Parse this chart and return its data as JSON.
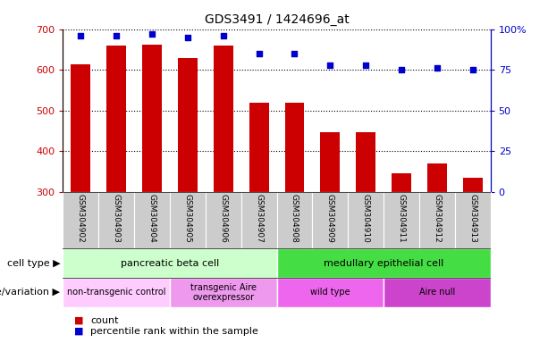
{
  "title": "GDS3491 / 1424696_at",
  "samples": [
    "GSM304902",
    "GSM304903",
    "GSM304904",
    "GSM304905",
    "GSM304906",
    "GSM304907",
    "GSM304908",
    "GSM304909",
    "GSM304910",
    "GSM304911",
    "GSM304912",
    "GSM304913"
  ],
  "counts": [
    614,
    660,
    663,
    630,
    660,
    520,
    520,
    446,
    447,
    346,
    370,
    335
  ],
  "percentile": [
    96,
    96,
    97,
    95,
    96,
    85,
    85,
    78,
    78,
    75,
    76,
    75
  ],
  "ylim_left": [
    300,
    700
  ],
  "ylim_right": [
    0,
    100
  ],
  "yticks_left": [
    300,
    400,
    500,
    600,
    700
  ],
  "yticks_right": [
    0,
    25,
    50,
    75,
    100
  ],
  "bar_color": "#cc0000",
  "dot_color": "#0000cc",
  "cell_type_groups": [
    {
      "label": "pancreatic beta cell",
      "start": 0,
      "end": 5,
      "color": "#ccffcc"
    },
    {
      "label": "medullary epithelial cell",
      "start": 6,
      "end": 11,
      "color": "#44dd44"
    }
  ],
  "genotype_groups": [
    {
      "label": "non-transgenic control",
      "start": 0,
      "end": 2,
      "color": "#ffccff"
    },
    {
      "label": "transgenic Aire\noverexpressor",
      "start": 3,
      "end": 5,
      "color": "#ee99ee"
    },
    {
      "label": "wild type",
      "start": 6,
      "end": 8,
      "color": "#ee66ee"
    },
    {
      "label": "Aire null",
      "start": 9,
      "end": 11,
      "color": "#cc44cc"
    }
  ],
  "legend_count_label": "count",
  "legend_percentile_label": "percentile rank within the sample",
  "cell_type_label": "cell type",
  "genotype_label": "genotype/variation",
  "right_axis_color": "#0000cc",
  "left_axis_color": "#cc0000",
  "xtick_bg": "#cccccc",
  "xtick_divider": "#ffffff"
}
